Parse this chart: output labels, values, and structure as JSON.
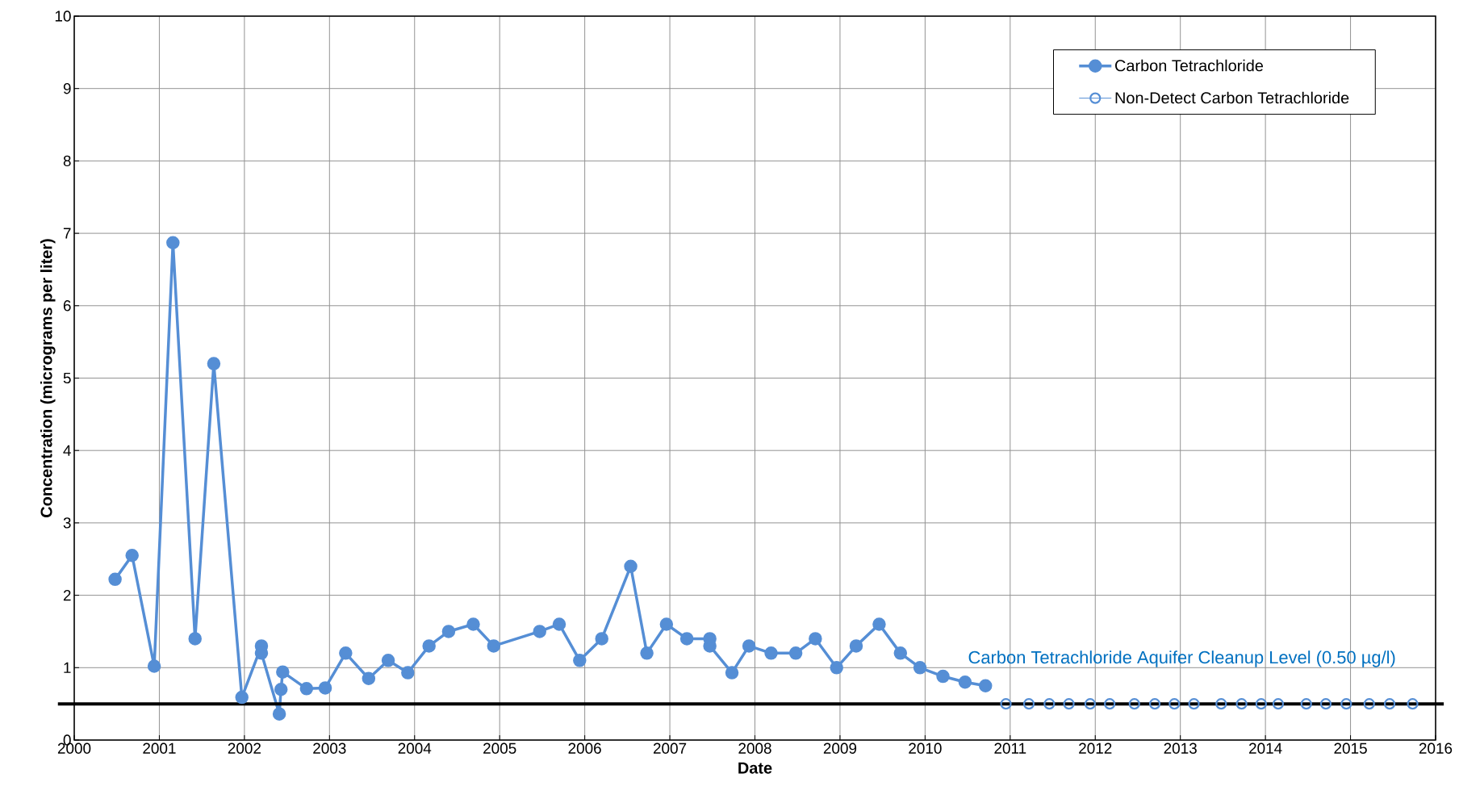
{
  "chart_data": {
    "type": "line",
    "xlabel": "Date",
    "ylabel": "Concentration (micrograms per liter)",
    "xlim": [
      2000,
      2016
    ],
    "xticks": [
      2000,
      2001,
      2002,
      2003,
      2004,
      2005,
      2006,
      2007,
      2008,
      2009,
      2010,
      2011,
      2012,
      2013,
      2014,
      2015,
      2016
    ],
    "ylim": [
      0,
      10
    ],
    "yticks": [
      0,
      1,
      2,
      3,
      4,
      5,
      6,
      7,
      8,
      9,
      10
    ],
    "grid": true,
    "legend": "top right",
    "marker": "circle",
    "series": [
      {
        "name": "Carbon Tetrachloride",
        "color": "#558ed5",
        "x": [
          2000.48,
          2000.68,
          2000.94,
          2001.16,
          2001.42,
          2001.64,
          2001.97,
          2002.2,
          2002.2,
          2002.41,
          2002.43,
          2002.45,
          2002.73,
          2002.95,
          2003.19,
          2003.46,
          2003.69,
          2003.92,
          2004.17,
          2004.4,
          2004.69,
          2004.93,
          2005.47,
          2005.7,
          2005.94,
          2006.2,
          2006.54,
          2006.73,
          2006.96,
          2007.2,
          2007.47,
          2007.47,
          2007.73,
          2007.93,
          2008.19,
          2008.48,
          2008.71,
          2008.96,
          2009.19,
          2009.46,
          2009.71,
          2009.94,
          2010.21,
          2010.47,
          2010.71
        ],
        "values": [
          2.22,
          2.55,
          1.02,
          6.87,
          1.4,
          5.2,
          0.59,
          1.3,
          1.2,
          0.36,
          0.7,
          0.94,
          0.71,
          0.72,
          1.2,
          0.85,
          1.1,
          0.93,
          1.3,
          1.5,
          1.6,
          1.3,
          1.5,
          1.6,
          1.1,
          1.4,
          2.4,
          1.2,
          1.6,
          1.4,
          1.4,
          1.3,
          0.93,
          1.3,
          1.2,
          1.2,
          1.4,
          1.0,
          1.3,
          1.6,
          1.2,
          1.0,
          0.88,
          0.8,
          0.75
        ]
      },
      {
        "name": "Non-Detect Carbon Tetrachloride",
        "type": "scatter",
        "color": "#558ed5",
        "x": [
          2010.95,
          2011.22,
          2011.46,
          2011.69,
          2011.94,
          2012.17,
          2012.46,
          2012.7,
          2012.93,
          2013.16,
          2013.48,
          2013.72,
          2013.95,
          2014.15,
          2014.48,
          2014.71,
          2014.95,
          2015.22,
          2015.46,
          2015.73
        ],
        "values": [
          0.5,
          0.5,
          0.5,
          0.5,
          0.5,
          0.5,
          0.5,
          0.5,
          0.5,
          0.5,
          0.5,
          0.5,
          0.5,
          0.5,
          0.5,
          0.5,
          0.5,
          0.5,
          0.5,
          0.5
        ]
      }
    ],
    "ref_lines": [
      {
        "axis": "y",
        "value": 0.5,
        "label": "Carbon Tetrachloride Aquifer Cleanup Level (0.50 µg/l)",
        "color": "#000000"
      }
    ]
  }
}
